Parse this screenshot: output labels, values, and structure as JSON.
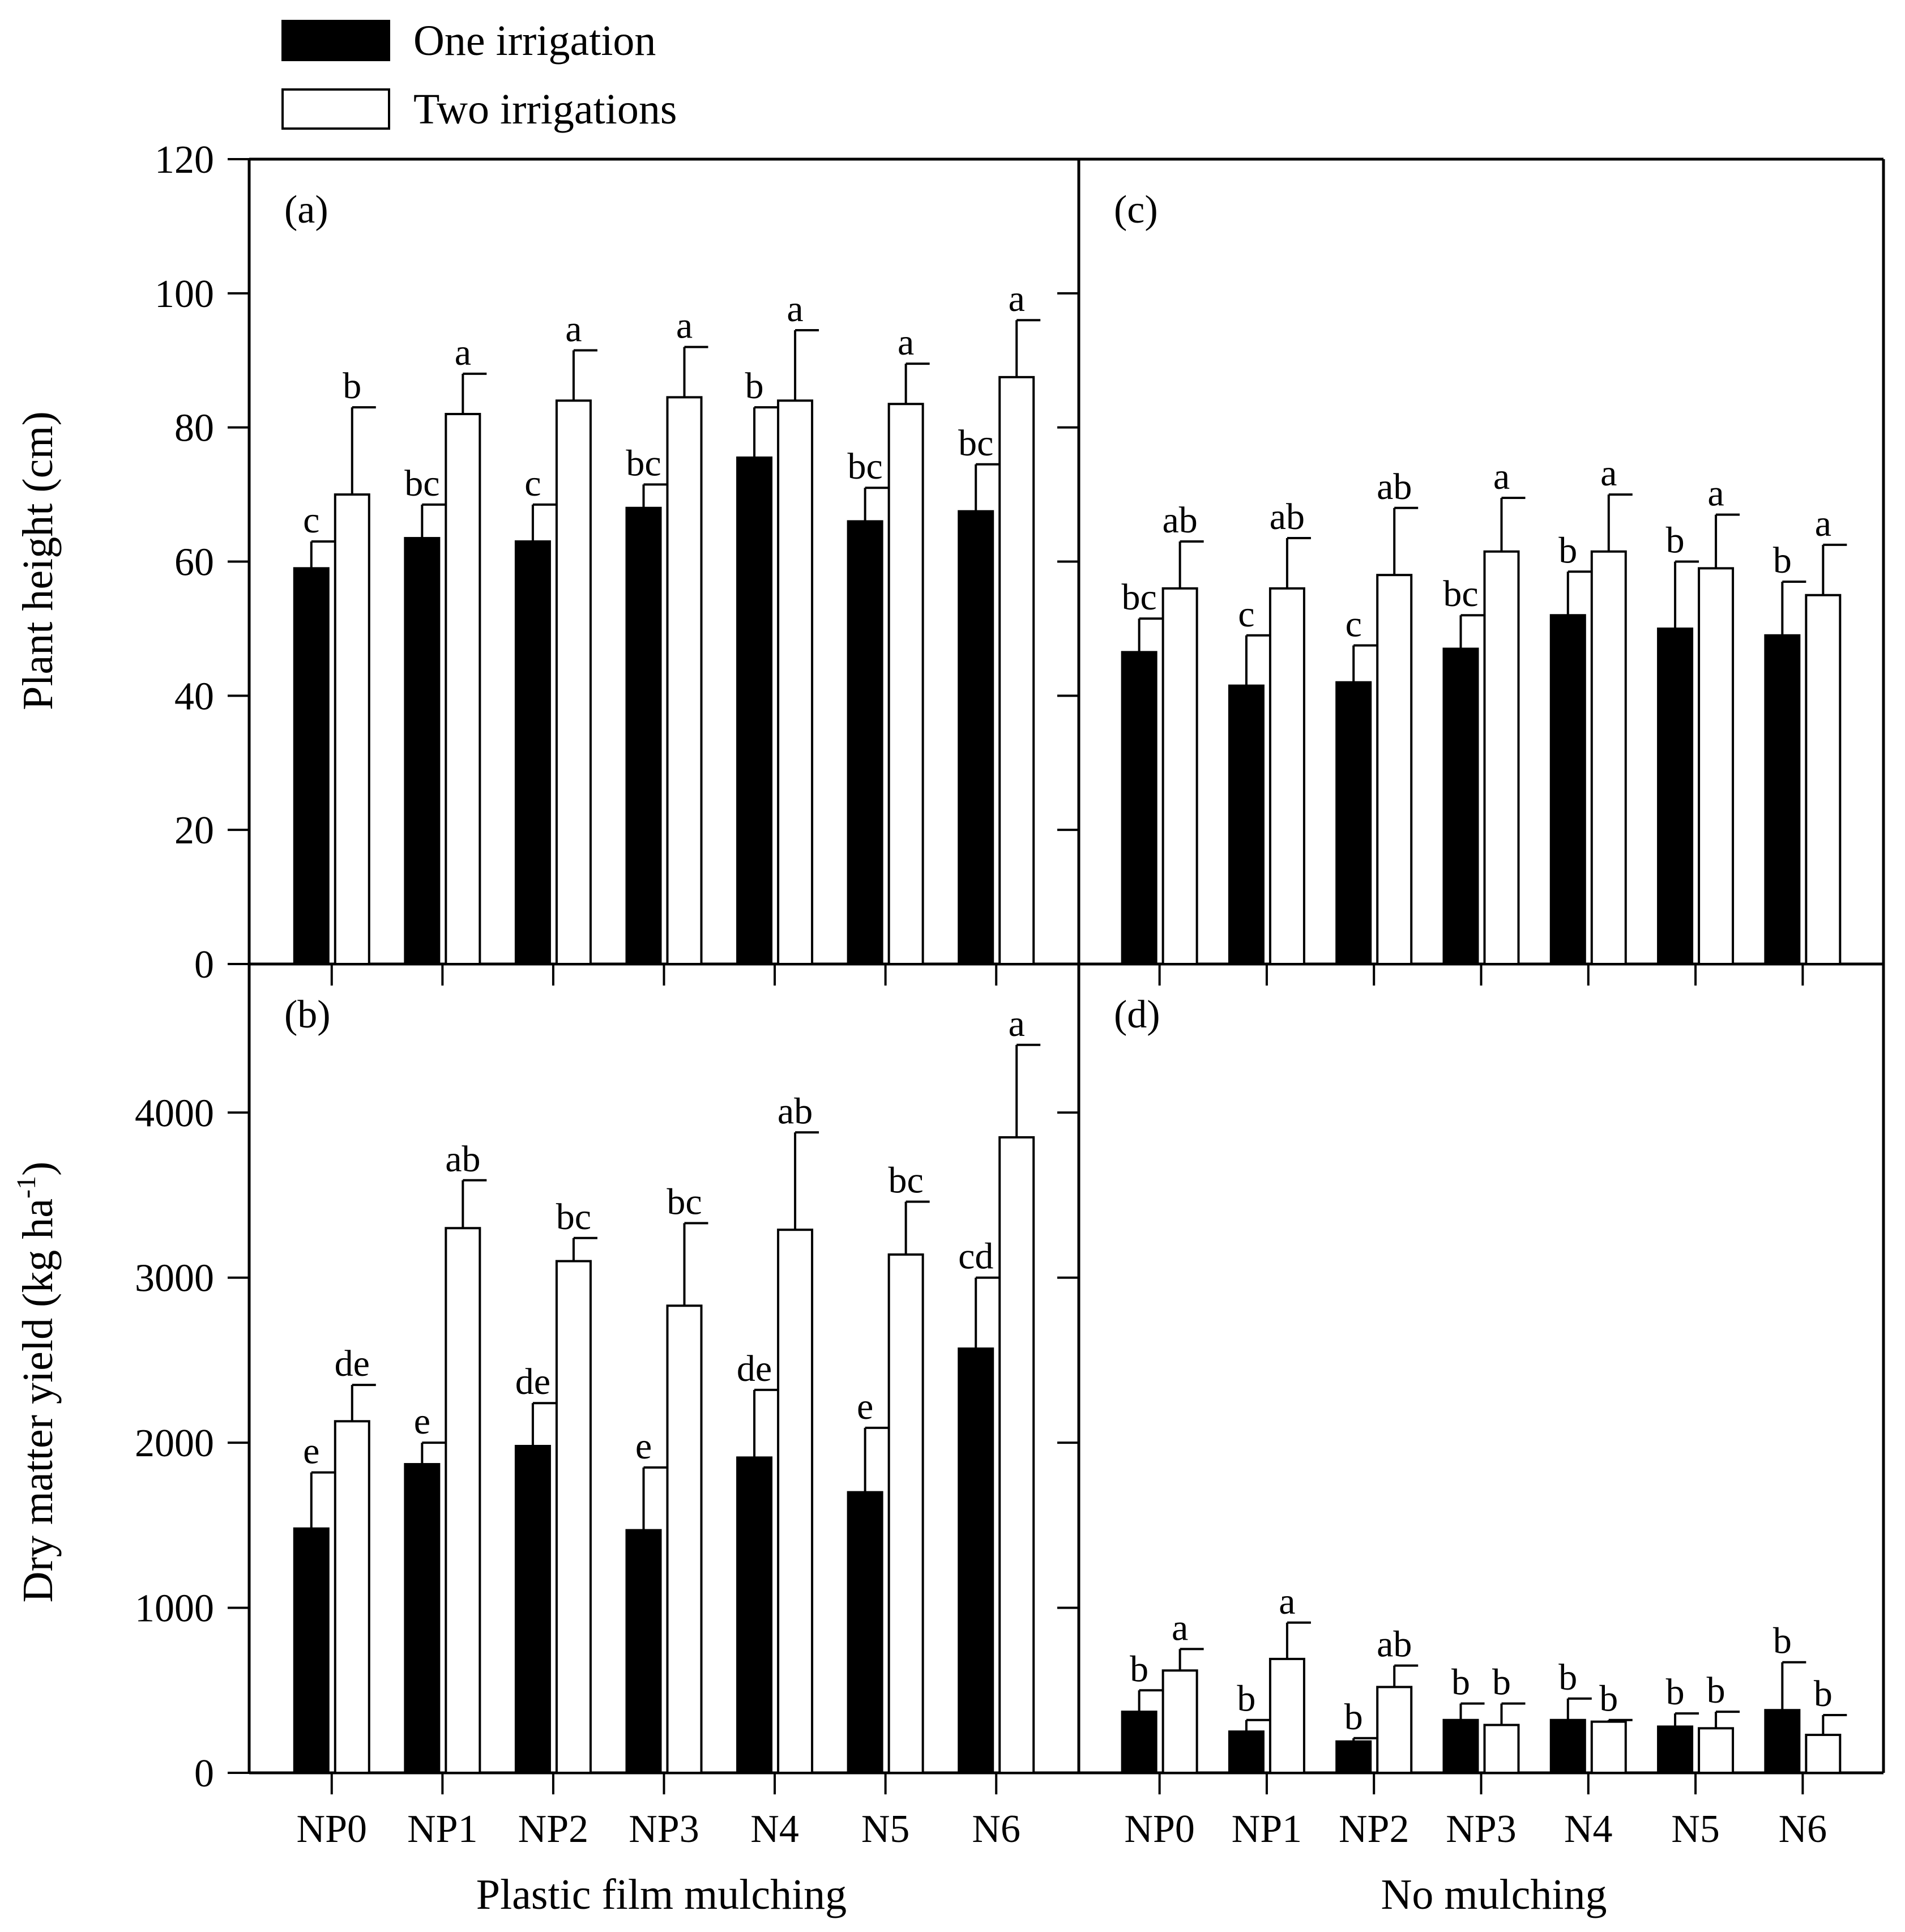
{
  "legend": {
    "one_irrigation": "One irrigation",
    "two_irrigations": "Two irrigations"
  },
  "y_axis_titles": {
    "top": "Plant height (cm)",
    "bottom_main": "Dry matter yield (kg ha",
    "bottom_sup": "-1",
    "bottom_close": ")"
  },
  "x_axis_titles": {
    "left": "Plastic film mulching",
    "right": "No mulching"
  },
  "colors": {
    "one": "#000000",
    "two": "#ffffff",
    "stroke": "#000000"
  },
  "chart_data": [
    {
      "panel": "(a)",
      "type": "bar",
      "title": "",
      "xlabel": "Plastic film mulching",
      "ylabel": "Plant height (cm)",
      "ylim": [
        0,
        120
      ],
      "yticks": [
        0,
        20,
        40,
        60,
        80,
        100,
        120
      ],
      "categories": [
        "NP0",
        "NP1",
        "NP2",
        "NP3",
        "N4",
        "N5",
        "N6"
      ],
      "series": [
        {
          "name": "One irrigation",
          "values": [
            59,
            63.5,
            63,
            68,
            75.5,
            66,
            67.5
          ],
          "errors": [
            4,
            5,
            5.5,
            3.5,
            7.5,
            5,
            7
          ],
          "letters": [
            "c",
            "bc",
            "c",
            "bc",
            "b",
            "bc",
            "bc"
          ]
        },
        {
          "name": "Two irrigations",
          "values": [
            70,
            82,
            84,
            84.5,
            84,
            83.5,
            87.5
          ],
          "errors": [
            13,
            6,
            7.5,
            7.5,
            10.5,
            6,
            8.5
          ],
          "letters": [
            "b",
            "a",
            "a",
            "a",
            "a",
            "a",
            "a"
          ]
        }
      ]
    },
    {
      "panel": "(b)",
      "type": "bar",
      "title": "",
      "xlabel": "Plastic film mulching",
      "ylabel": "Dry matter yield (kg ha-1)",
      "ylim": [
        0,
        4900
      ],
      "yticks": [
        0,
        1000,
        2000,
        3000,
        4000
      ],
      "categories": [
        "NP0",
        "NP1",
        "NP2",
        "NP3",
        "N4",
        "N5",
        "N6"
      ],
      "series": [
        {
          "name": "One irrigation",
          "values": [
            1480,
            1870,
            1980,
            1470,
            1910,
            1700,
            2570
          ],
          "errors": [
            340,
            130,
            260,
            380,
            410,
            390,
            430
          ],
          "letters": [
            "e",
            "e",
            "de",
            "e",
            "de",
            "e",
            "cd"
          ]
        },
        {
          "name": "Two irrigations",
          "values": [
            2130,
            3300,
            3100,
            2830,
            3290,
            3140,
            3850
          ],
          "errors": [
            220,
            290,
            140,
            500,
            590,
            320,
            560
          ],
          "letters": [
            "de",
            "ab",
            "bc",
            "bc",
            "ab",
            "bc",
            "a"
          ]
        }
      ]
    },
    {
      "panel": "(c)",
      "type": "bar",
      "title": "",
      "xlabel": "No mulching",
      "ylabel": "Plant height (cm)",
      "ylim": [
        0,
        120
      ],
      "yticks": [
        0,
        20,
        40,
        60,
        80,
        100,
        120
      ],
      "categories": [
        "NP0",
        "NP1",
        "NP2",
        "NP3",
        "N4",
        "N5",
        "N6"
      ],
      "series": [
        {
          "name": "One irrigation",
          "values": [
            46.5,
            41.5,
            42,
            47,
            52,
            50,
            49
          ],
          "errors": [
            5,
            7.5,
            5.5,
            5,
            6.5,
            10,
            8
          ],
          "letters": [
            "bc",
            "c",
            "c",
            "bc",
            "b",
            "b",
            "b"
          ]
        },
        {
          "name": "Two irrigations",
          "values": [
            56,
            56,
            58,
            61.5,
            61.5,
            59,
            55
          ],
          "errors": [
            7,
            7.5,
            10,
            8,
            8.5,
            8,
            7.5
          ],
          "letters": [
            "ab",
            "ab",
            "ab",
            "a",
            "a",
            "a",
            "a"
          ]
        }
      ]
    },
    {
      "panel": "(d)",
      "type": "bar",
      "title": "",
      "xlabel": "No mulching",
      "ylabel": "Dry matter yield (kg ha-1)",
      "ylim": [
        0,
        4900
      ],
      "yticks": [
        0,
        1000,
        2000,
        3000,
        4000
      ],
      "categories": [
        "NP0",
        "NP1",
        "NP2",
        "NP3",
        "N4",
        "N5",
        "N6"
      ],
      "series": [
        {
          "name": "One irrigation",
          "values": [
            370,
            250,
            190,
            320,
            320,
            280,
            380
          ],
          "errors": [
            130,
            70,
            20,
            100,
            130,
            80,
            290
          ],
          "letters": [
            "b",
            "b",
            "b",
            "b",
            "b",
            "b",
            "b"
          ]
        },
        {
          "name": "Two irrigations",
          "values": [
            620,
            690,
            520,
            290,
            310,
            270,
            230
          ],
          "errors": [
            130,
            220,
            130,
            130,
            10,
            100,
            120
          ],
          "letters": [
            "a",
            "a",
            "ab",
            "b",
            "b",
            "b",
            "b"
          ]
        }
      ]
    }
  ]
}
